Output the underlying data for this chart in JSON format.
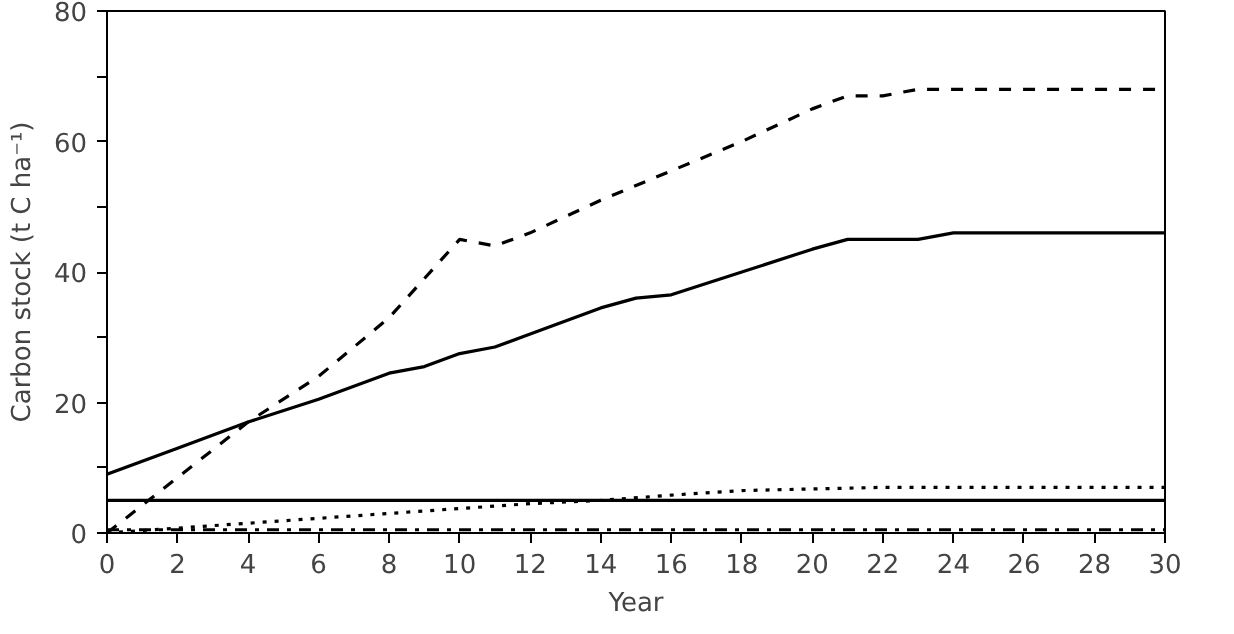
{
  "chart_data": {
    "type": "line",
    "xlabel": "Year",
    "ylabel": "Carbon stock (t C ha⁻¹)",
    "xlim": [
      0,
      30
    ],
    "xticks": [
      0,
      2,
      4,
      6,
      8,
      10,
      12,
      14,
      16,
      18,
      20,
      22,
      24,
      26,
      28,
      30
    ],
    "ylim": [
      0,
      80
    ],
    "yticks": [
      0,
      {
        "value": 10,
        "label": null
      },
      20,
      {
        "value": 30,
        "label": null
      },
      40,
      {
        "value": 50,
        "label": null
      },
      60,
      {
        "value": 70,
        "label": null
      },
      80
    ],
    "grid": false,
    "marker": "none",
    "series": [
      {
        "color": "#000000",
        "line_style": "solid",
        "x": [
          0,
          2,
          4,
          6,
          8,
          9,
          10,
          11,
          12,
          14,
          15,
          16,
          18,
          20,
          21,
          23,
          24,
          28,
          30
        ],
        "values": [
          9,
          13,
          17,
          20.5,
          24.5,
          25.5,
          27.5,
          28.5,
          30.5,
          34.5,
          36,
          36.5,
          40,
          43.5,
          45,
          45,
          46,
          46,
          46
        ]
      },
      {
        "color": "#000000",
        "line_style": "dashed",
        "x": [
          0,
          4,
          6,
          8,
          10,
          11,
          12,
          14,
          16,
          18,
          20,
          21,
          22,
          23,
          28,
          30
        ],
        "values": [
          0,
          17,
          24,
          33,
          45,
          44,
          46,
          51,
          55.5,
          60,
          65,
          67,
          67,
          68,
          68,
          68
        ]
      },
      {
        "color": "#000000",
        "line_style": "dotted",
        "x": [
          0,
          4,
          8,
          12,
          14,
          16,
          18,
          22,
          24,
          30
        ],
        "values": [
          0,
          1.5,
          3,
          4.5,
          5,
          5.8,
          6.5,
          7,
          7,
          7
        ]
      },
      {
        "color": "#000000",
        "line_style": "solid",
        "x": [
          0,
          30
        ],
        "values": [
          5,
          5
        ]
      },
      {
        "color": "#000000",
        "line_style": "dashdot",
        "x": [
          0,
          30
        ],
        "values": [
          0.5,
          0.5
        ]
      }
    ]
  }
}
